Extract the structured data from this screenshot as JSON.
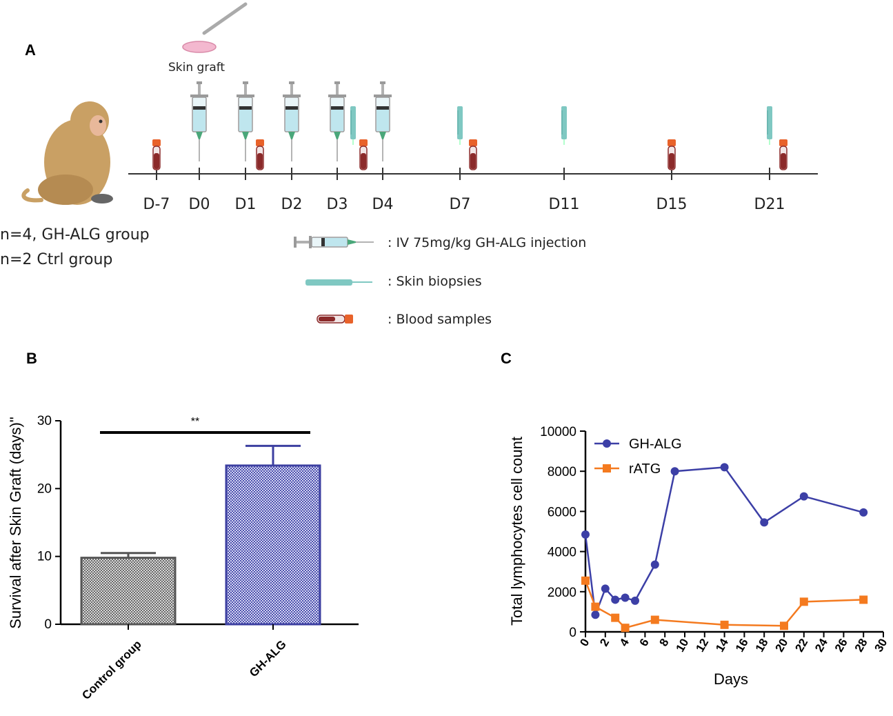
{
  "panel_labels": {
    "a": "A",
    "b": "B",
    "c": "C"
  },
  "panel_a": {
    "skin_graft_label": "Skin graft",
    "group_lines": [
      "n=4, GH-ALG group",
      "n=2 Ctrl group"
    ],
    "timeline_days": [
      "D-7",
      "D0",
      "D1",
      "D2",
      "D3",
      "D4",
      "D7",
      "D11",
      "D15",
      "D21"
    ],
    "legend": {
      "injection": ": IV 75mg/kg GH-ALG injection",
      "biopsy": ": Skin biopsies",
      "blood": ": Blood samples"
    },
    "colors": {
      "syringe_fluid": "#bfe6ee",
      "biopsy": "#7fc8c2",
      "blood_tube": "#8b2a2a",
      "tube_cap": "#e8622a",
      "skin_graft": "#f3b8cf"
    }
  },
  "chart_data": [
    {
      "type": "bar",
      "title": "",
      "ylabel": "Survival after Skin Graft (days)\"",
      "xlabel": "",
      "categories": [
        "Control group",
        "GH-ALG"
      ],
      "values": [
        9.8,
        23.4
      ],
      "errors": [
        0.7,
        2.9
      ],
      "ylim": [
        0,
        30
      ],
      "yticks": [
        "0",
        "10",
        "20",
        "30"
      ],
      "significance": "**",
      "colors": [
        "#555555",
        "#3c3fa0"
      ]
    },
    {
      "type": "line",
      "title": "",
      "xlabel": "Days",
      "ylabel": "Total lymphocytes cell count",
      "xlim": [
        0,
        30
      ],
      "ylim": [
        0,
        10000
      ],
      "xticks": [
        "0",
        "2",
        "4",
        "6",
        "8",
        "10",
        "12",
        "14",
        "16",
        "18",
        "20",
        "22",
        "24",
        "26",
        "28",
        "30"
      ],
      "yticks": [
        "0",
        "2000",
        "4000",
        "6000",
        "8000",
        "10000"
      ],
      "series": [
        {
          "name": "GH-ALG",
          "color": "#3c3fa6",
          "marker": "circle",
          "x": [
            0,
            1,
            2,
            3,
            4,
            5,
            7,
            9,
            14,
            18,
            22,
            28
          ],
          "y": [
            4850,
            850,
            2150,
            1600,
            1700,
            1550,
            3350,
            8000,
            8200,
            5450,
            6750,
            5950
          ]
        },
        {
          "name": "rATG",
          "color": "#f47a1f",
          "marker": "square",
          "x": [
            0,
            1,
            3,
            4,
            7,
            14,
            20,
            22,
            28
          ],
          "y": [
            2550,
            1250,
            700,
            200,
            600,
            350,
            300,
            1500,
            1600
          ]
        }
      ],
      "legend_position": "top-left"
    }
  ]
}
